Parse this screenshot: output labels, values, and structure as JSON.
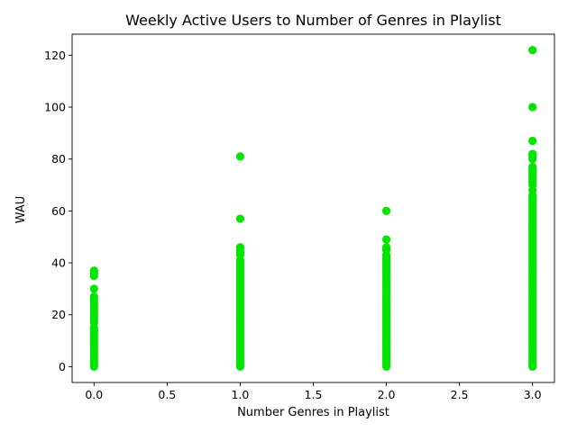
{
  "chart_data": {
    "type": "scatter",
    "title": "Weekly Active Users to Number of Genres in Playlist",
    "xlabel": "Number Genres in Playlist",
    "ylabel": "WAU",
    "xlim": [
      -0.15,
      3.15
    ],
    "ylim": [
      -6.1,
      128.1
    ],
    "xticks": [
      0.0,
      0.5,
      1.0,
      1.5,
      2.0,
      2.5,
      3.0
    ],
    "xtick_labels": [
      "0.0",
      "0.5",
      "1.0",
      "1.5",
      "2.0",
      "2.5",
      "3.0"
    ],
    "yticks": [
      0,
      20,
      40,
      60,
      80,
      100,
      120
    ],
    "ytick_labels": [
      "0",
      "20",
      "40",
      "60",
      "80",
      "100",
      "120"
    ],
    "grid": false,
    "marker_color": "#00e600",
    "series": [
      {
        "points": [
          {
            "x": 0,
            "y": 0
          },
          {
            "x": 0,
            "y": 1
          },
          {
            "x": 0,
            "y": 2
          },
          {
            "x": 0,
            "y": 3
          },
          {
            "x": 0,
            "y": 4
          },
          {
            "x": 0,
            "y": 5
          },
          {
            "x": 0,
            "y": 6
          },
          {
            "x": 0,
            "y": 7
          },
          {
            "x": 0,
            "y": 8
          },
          {
            "x": 0,
            "y": 9
          },
          {
            "x": 0,
            "y": 10
          },
          {
            "x": 0,
            "y": 11
          },
          {
            "x": 0,
            "y": 12
          },
          {
            "x": 0,
            "y": 13
          },
          {
            "x": 0,
            "y": 14
          },
          {
            "x": 0,
            "y": 15
          },
          {
            "x": 0,
            "y": 17
          },
          {
            "x": 0,
            "y": 18
          },
          {
            "x": 0,
            "y": 19
          },
          {
            "x": 0,
            "y": 20
          },
          {
            "x": 0,
            "y": 21
          },
          {
            "x": 0,
            "y": 22
          },
          {
            "x": 0,
            "y": 23
          },
          {
            "x": 0,
            "y": 24
          },
          {
            "x": 0,
            "y": 25
          },
          {
            "x": 0,
            "y": 26
          },
          {
            "x": 0,
            "y": 27
          },
          {
            "x": 0,
            "y": 30
          },
          {
            "x": 0,
            "y": 35
          },
          {
            "x": 0,
            "y": 36
          },
          {
            "x": 0,
            "y": 37
          },
          {
            "x": 1,
            "y": 0
          },
          {
            "x": 1,
            "y": 1
          },
          {
            "x": 1,
            "y": 2
          },
          {
            "x": 1,
            "y": 3
          },
          {
            "x": 1,
            "y": 4
          },
          {
            "x": 1,
            "y": 5
          },
          {
            "x": 1,
            "y": 6
          },
          {
            "x": 1,
            "y": 7
          },
          {
            "x": 1,
            "y": 8
          },
          {
            "x": 1,
            "y": 9
          },
          {
            "x": 1,
            "y": 10
          },
          {
            "x": 1,
            "y": 11
          },
          {
            "x": 1,
            "y": 12
          },
          {
            "x": 1,
            "y": 13
          },
          {
            "x": 1,
            "y": 14
          },
          {
            "x": 1,
            "y": 15
          },
          {
            "x": 1,
            "y": 16
          },
          {
            "x": 1,
            "y": 17
          },
          {
            "x": 1,
            "y": 18
          },
          {
            "x": 1,
            "y": 19
          },
          {
            "x": 1,
            "y": 20
          },
          {
            "x": 1,
            "y": 21
          },
          {
            "x": 1,
            "y": 22
          },
          {
            "x": 1,
            "y": 23
          },
          {
            "x": 1,
            "y": 24
          },
          {
            "x": 1,
            "y": 25
          },
          {
            "x": 1,
            "y": 26
          },
          {
            "x": 1,
            "y": 27
          },
          {
            "x": 1,
            "y": 28
          },
          {
            "x": 1,
            "y": 29
          },
          {
            "x": 1,
            "y": 30
          },
          {
            "x": 1,
            "y": 31
          },
          {
            "x": 1,
            "y": 32
          },
          {
            "x": 1,
            "y": 33
          },
          {
            "x": 1,
            "y": 34
          },
          {
            "x": 1,
            "y": 35
          },
          {
            "x": 1,
            "y": 36
          },
          {
            "x": 1,
            "y": 37
          },
          {
            "x": 1,
            "y": 38
          },
          {
            "x": 1,
            "y": 39
          },
          {
            "x": 1,
            "y": 40
          },
          {
            "x": 1,
            "y": 41
          },
          {
            "x": 1,
            "y": 43
          },
          {
            "x": 1,
            "y": 44
          },
          {
            "x": 1,
            "y": 45
          },
          {
            "x": 1,
            "y": 46
          },
          {
            "x": 1,
            "y": 57
          },
          {
            "x": 1,
            "y": 81
          },
          {
            "x": 2,
            "y": 0
          },
          {
            "x": 2,
            "y": 1
          },
          {
            "x": 2,
            "y": 2
          },
          {
            "x": 2,
            "y": 3
          },
          {
            "x": 2,
            "y": 4
          },
          {
            "x": 2,
            "y": 5
          },
          {
            "x": 2,
            "y": 6
          },
          {
            "x": 2,
            "y": 7
          },
          {
            "x": 2,
            "y": 8
          },
          {
            "x": 2,
            "y": 9
          },
          {
            "x": 2,
            "y": 10
          },
          {
            "x": 2,
            "y": 11
          },
          {
            "x": 2,
            "y": 12
          },
          {
            "x": 2,
            "y": 13
          },
          {
            "x": 2,
            "y": 14
          },
          {
            "x": 2,
            "y": 15
          },
          {
            "x": 2,
            "y": 16
          },
          {
            "x": 2,
            "y": 17
          },
          {
            "x": 2,
            "y": 18
          },
          {
            "x": 2,
            "y": 19
          },
          {
            "x": 2,
            "y": 20
          },
          {
            "x": 2,
            "y": 21
          },
          {
            "x": 2,
            "y": 22
          },
          {
            "x": 2,
            "y": 23
          },
          {
            "x": 2,
            "y": 24
          },
          {
            "x": 2,
            "y": 25
          },
          {
            "x": 2,
            "y": 26
          },
          {
            "x": 2,
            "y": 27
          },
          {
            "x": 2,
            "y": 28
          },
          {
            "x": 2,
            "y": 29
          },
          {
            "x": 2,
            "y": 30
          },
          {
            "x": 2,
            "y": 31
          },
          {
            "x": 2,
            "y": 32
          },
          {
            "x": 2,
            "y": 33
          },
          {
            "x": 2,
            "y": 34
          },
          {
            "x": 2,
            "y": 35
          },
          {
            "x": 2,
            "y": 36
          },
          {
            "x": 2,
            "y": 37
          },
          {
            "x": 2,
            "y": 38
          },
          {
            "x": 2,
            "y": 39
          },
          {
            "x": 2,
            "y": 40
          },
          {
            "x": 2,
            "y": 41
          },
          {
            "x": 2,
            "y": 42
          },
          {
            "x": 2,
            "y": 43
          },
          {
            "x": 2,
            "y": 45
          },
          {
            "x": 2,
            "y": 46
          },
          {
            "x": 2,
            "y": 49
          },
          {
            "x": 2,
            "y": 60
          },
          {
            "x": 3,
            "y": 0
          },
          {
            "x": 3,
            "y": 1
          },
          {
            "x": 3,
            "y": 2
          },
          {
            "x": 3,
            "y": 3
          },
          {
            "x": 3,
            "y": 4
          },
          {
            "x": 3,
            "y": 5
          },
          {
            "x": 3,
            "y": 6
          },
          {
            "x": 3,
            "y": 7
          },
          {
            "x": 3,
            "y": 8
          },
          {
            "x": 3,
            "y": 9
          },
          {
            "x": 3,
            "y": 10
          },
          {
            "x": 3,
            "y": 11
          },
          {
            "x": 3,
            "y": 12
          },
          {
            "x": 3,
            "y": 13
          },
          {
            "x": 3,
            "y": 14
          },
          {
            "x": 3,
            "y": 15
          },
          {
            "x": 3,
            "y": 16
          },
          {
            "x": 3,
            "y": 17
          },
          {
            "x": 3,
            "y": 18
          },
          {
            "x": 3,
            "y": 19
          },
          {
            "x": 3,
            "y": 20
          },
          {
            "x": 3,
            "y": 21
          },
          {
            "x": 3,
            "y": 22
          },
          {
            "x": 3,
            "y": 23
          },
          {
            "x": 3,
            "y": 24
          },
          {
            "x": 3,
            "y": 25
          },
          {
            "x": 3,
            "y": 26
          },
          {
            "x": 3,
            "y": 27
          },
          {
            "x": 3,
            "y": 28
          },
          {
            "x": 3,
            "y": 29
          },
          {
            "x": 3,
            "y": 30
          },
          {
            "x": 3,
            "y": 31
          },
          {
            "x": 3,
            "y": 32
          },
          {
            "x": 3,
            "y": 33
          },
          {
            "x": 3,
            "y": 34
          },
          {
            "x": 3,
            "y": 35
          },
          {
            "x": 3,
            "y": 36
          },
          {
            "x": 3,
            "y": 37
          },
          {
            "x": 3,
            "y": 38
          },
          {
            "x": 3,
            "y": 39
          },
          {
            "x": 3,
            "y": 40
          },
          {
            "x": 3,
            "y": 41
          },
          {
            "x": 3,
            "y": 42
          },
          {
            "x": 3,
            "y": 43
          },
          {
            "x": 3,
            "y": 44
          },
          {
            "x": 3,
            "y": 45
          },
          {
            "x": 3,
            "y": 46
          },
          {
            "x": 3,
            "y": 47
          },
          {
            "x": 3,
            "y": 48
          },
          {
            "x": 3,
            "y": 49
          },
          {
            "x": 3,
            "y": 50
          },
          {
            "x": 3,
            "y": 51
          },
          {
            "x": 3,
            "y": 52
          },
          {
            "x": 3,
            "y": 53
          },
          {
            "x": 3,
            "y": 54
          },
          {
            "x": 3,
            "y": 55
          },
          {
            "x": 3,
            "y": 56
          },
          {
            "x": 3,
            "y": 57
          },
          {
            "x": 3,
            "y": 58
          },
          {
            "x": 3,
            "y": 59
          },
          {
            "x": 3,
            "y": 60
          },
          {
            "x": 3,
            "y": 61
          },
          {
            "x": 3,
            "y": 62
          },
          {
            "x": 3,
            "y": 63
          },
          {
            "x": 3,
            "y": 64
          },
          {
            "x": 3,
            "y": 65
          },
          {
            "x": 3,
            "y": 66
          },
          {
            "x": 3,
            "y": 68
          },
          {
            "x": 3,
            "y": 70
          },
          {
            "x": 3,
            "y": 71
          },
          {
            "x": 3,
            "y": 72
          },
          {
            "x": 3,
            "y": 73
          },
          {
            "x": 3,
            "y": 74
          },
          {
            "x": 3,
            "y": 75
          },
          {
            "x": 3,
            "y": 76
          },
          {
            "x": 3,
            "y": 77
          },
          {
            "x": 3,
            "y": 80
          },
          {
            "x": 3,
            "y": 81
          },
          {
            "x": 3,
            "y": 82
          },
          {
            "x": 3,
            "y": 87
          },
          {
            "x": 3,
            "y": 100
          },
          {
            "x": 3,
            "y": 122
          }
        ]
      }
    ]
  }
}
